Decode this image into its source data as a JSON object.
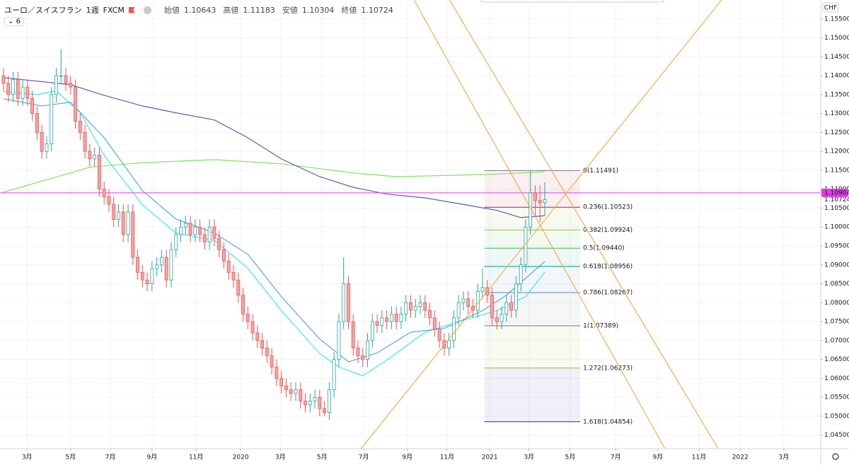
{
  "chart_data": {
    "type": "candlestick",
    "title": "ユーロ／スイスフラン",
    "interval": "1週",
    "source": "FXCM",
    "currency": "CHF",
    "indicator_count": 6,
    "ohlc_labels": [
      "始値",
      "高値",
      "安値",
      "終値"
    ],
    "up_color": "#26a69a",
    "down_color": "#ef5350",
    "grid": true,
    "xlim": [
      -0.74,
      170.6
    ],
    "ylim": [
      1.0414,
      1.16
    ],
    "xticks": [
      {
        "value": 4.9,
        "label": "3月"
      },
      {
        "value": 14.0,
        "label": "5月"
      },
      {
        "value": 22.3,
        "label": "7月"
      },
      {
        "value": 31.0,
        "label": "9月"
      },
      {
        "value": 40.2,
        "label": "11月"
      },
      {
        "value": 49.5,
        "label": "2020"
      },
      {
        "value": 57.8,
        "label": "3月"
      },
      {
        "value": 66.5,
        "label": "5月"
      },
      {
        "value": 75.2,
        "label": "7月"
      },
      {
        "value": 84.3,
        "label": "9月"
      },
      {
        "value": 92.6,
        "label": "11月"
      },
      {
        "value": 101.5,
        "label": "2021"
      },
      {
        "value": 109.7,
        "label": "3月"
      },
      {
        "value": 118.3,
        "label": "5月"
      },
      {
        "value": 127.8,
        "label": "7月"
      },
      {
        "value": 136.6,
        "label": "9月"
      },
      {
        "value": 145.2,
        "label": "11月"
      },
      {
        "value": 153.8,
        "label": "2022"
      },
      {
        "value": 162.9,
        "label": "3月"
      }
    ],
    "yticks": [
      {
        "value": 1.045,
        "label": "1.04500"
      },
      {
        "value": 1.05,
        "label": "1.05000"
      },
      {
        "value": 1.055,
        "label": "1.05500"
      },
      {
        "value": 1.06,
        "label": "1.06000"
      },
      {
        "value": 1.065,
        "label": "1.06500"
      },
      {
        "value": 1.07,
        "label": "1.07000"
      },
      {
        "value": 1.075,
        "label": "1.07500"
      },
      {
        "value": 1.08,
        "label": "1.08000"
      },
      {
        "value": 1.085,
        "label": "1.08500"
      },
      {
        "value": 1.09,
        "label": "1.09000"
      },
      {
        "value": 1.095,
        "label": "1.09500"
      },
      {
        "value": 1.1,
        "label": "1.10000"
      },
      {
        "value": 1.105,
        "label": "1.10500"
      },
      {
        "value": 1.11,
        "label": "1.11000"
      },
      {
        "value": 1.115,
        "label": "1.11500"
      },
      {
        "value": 1.12,
        "label": "1.12000"
      },
      {
        "value": 1.125,
        "label": "1.12500"
      },
      {
        "value": 1.13,
        "label": "1.13000"
      },
      {
        "value": 1.135,
        "label": "1.13500"
      },
      {
        "value": 1.14,
        "label": "1.14000"
      },
      {
        "value": 1.145,
        "label": "1.14500"
      },
      {
        "value": 1.15,
        "label": "1.15000"
      },
      {
        "value": 1.155,
        "label": "1.15500"
      }
    ],
    "x": [
      0,
      1,
      2,
      3,
      4,
      5,
      6,
      7,
      8,
      9,
      10,
      11,
      12,
      13,
      14,
      15,
      16,
      17,
      18,
      19,
      20,
      21,
      22,
      23,
      24,
      25,
      26,
      27,
      28,
      29,
      30,
      31,
      32,
      33,
      34,
      35,
      36,
      37,
      38,
      39,
      40,
      41,
      42,
      43,
      44,
      45,
      46,
      47,
      48,
      49,
      50,
      51,
      52,
      53,
      54,
      55,
      56,
      57,
      58,
      59,
      60,
      61,
      62,
      63,
      64,
      65,
      66,
      67,
      68,
      69,
      70,
      71,
      72,
      73,
      74,
      75,
      76,
      77,
      78,
      79,
      80,
      81,
      82,
      83,
      84,
      85,
      86,
      87,
      88,
      89,
      90,
      91,
      92,
      93,
      94,
      95,
      96,
      97,
      98,
      99,
      100,
      101,
      102,
      103,
      104,
      105,
      106,
      107,
      108,
      109,
      110,
      111,
      112,
      113
    ],
    "open": [
      1.14,
      1.138,
      1.135,
      1.139,
      1.134,
      1.137,
      1.134,
      1.13,
      1.125,
      1.12,
      1.122,
      1.135,
      1.14,
      1.14,
      1.138,
      1.137,
      1.128,
      1.125,
      1.12,
      1.118,
      1.119,
      1.11,
      1.108,
      1.106,
      1.102,
      1.104,
      1.098,
      1.104,
      1.092,
      1.088,
      1.086,
      1.085,
      1.089,
      1.09,
      1.092,
      1.086,
      1.094,
      1.098,
      1.1,
      1.101,
      1.098,
      1.1,
      1.098,
      1.096,
      1.1,
      1.097,
      1.094,
      1.091,
      1.088,
      1.086,
      1.082,
      1.077,
      1.075,
      1.072,
      1.07,
      1.068,
      1.066,
      1.063,
      1.06,
      1.058,
      1.057,
      1.056,
      1.057,
      1.054,
      1.053,
      1.054,
      1.055,
      1.052,
      1.051,
      1.057,
      1.065,
      1.075,
      1.085,
      1.075,
      1.068,
      1.066,
      1.065,
      1.07,
      1.075,
      1.074,
      1.076,
      1.075,
      1.077,
      1.075,
      1.077,
      1.08,
      1.078,
      1.079,
      1.08,
      1.078,
      1.076,
      1.073,
      1.07,
      1.068,
      1.07,
      1.076,
      1.08,
      1.081,
      1.079,
      1.078,
      1.083,
      1.084,
      1.082,
      1.076,
      1.075,
      1.077,
      1.08,
      1.078,
      1.085,
      1.09,
      1.1,
      1.109,
      1.107,
      1.10643
    ],
    "high": [
      1.142,
      1.14,
      1.141,
      1.141,
      1.139,
      1.139,
      1.136,
      1.132,
      1.127,
      1.124,
      1.137,
      1.142,
      1.147,
      1.142,
      1.14,
      1.139,
      1.13,
      1.127,
      1.122,
      1.121,
      1.121,
      1.112,
      1.11,
      1.108,
      1.106,
      1.106,
      1.106,
      1.106,
      1.094,
      1.09,
      1.088,
      1.091,
      1.092,
      1.094,
      1.094,
      1.096,
      1.1,
      1.102,
      1.103,
      1.103,
      1.102,
      1.102,
      1.1,
      1.102,
      1.102,
      1.099,
      1.096,
      1.093,
      1.09,
      1.088,
      1.084,
      1.079,
      1.077,
      1.074,
      1.072,
      1.07,
      1.068,
      1.065,
      1.062,
      1.06,
      1.059,
      1.059,
      1.059,
      1.056,
      1.056,
      1.057,
      1.057,
      1.054,
      1.059,
      1.067,
      1.077,
      1.092,
      1.087,
      1.077,
      1.07,
      1.068,
      1.072,
      1.077,
      1.077,
      1.078,
      1.078,
      1.079,
      1.079,
      1.079,
      1.082,
      1.082,
      1.081,
      1.082,
      1.082,
      1.08,
      1.078,
      1.075,
      1.072,
      1.072,
      1.078,
      1.082,
      1.083,
      1.083,
      1.081,
      1.085,
      1.089,
      1.086,
      1.084,
      1.078,
      1.079,
      1.082,
      1.082,
      1.087,
      1.092,
      1.102,
      1.115,
      1.111,
      1.111,
      1.11183
    ],
    "low": [
      1.136,
      1.133,
      1.133,
      1.132,
      1.132,
      1.132,
      1.128,
      1.123,
      1.118,
      1.118,
      1.12,
      1.133,
      1.138,
      1.136,
      1.135,
      1.126,
      1.123,
      1.118,
      1.116,
      1.116,
      1.108,
      1.106,
      1.104,
      1.1,
      1.1,
      1.096,
      1.096,
      1.09,
      1.086,
      1.084,
      1.083,
      1.083,
      1.087,
      1.088,
      1.084,
      1.084,
      1.092,
      1.096,
      1.098,
      1.096,
      1.096,
      1.096,
      1.094,
      1.094,
      1.095,
      1.092,
      1.089,
      1.086,
      1.084,
      1.08,
      1.075,
      1.073,
      1.07,
      1.068,
      1.066,
      1.064,
      1.061,
      1.058,
      1.056,
      1.055,
      1.054,
      1.054,
      1.052,
      1.051,
      1.051,
      1.052,
      1.05,
      1.05,
      1.049,
      1.055,
      1.063,
      1.073,
      1.073,
      1.066,
      1.064,
      1.063,
      1.063,
      1.068,
      1.072,
      1.072,
      1.073,
      1.073,
      1.073,
      1.073,
      1.075,
      1.076,
      1.076,
      1.077,
      1.076,
      1.074,
      1.071,
      1.068,
      1.066,
      1.066,
      1.068,
      1.074,
      1.078,
      1.077,
      1.076,
      1.076,
      1.081,
      1.08,
      1.074,
      1.073,
      1.073,
      1.075,
      1.076,
      1.076,
      1.083,
      1.088,
      1.098,
      1.103,
      1.1013,
      1.10304
    ],
    "close": [
      1.138,
      1.135,
      1.139,
      1.134,
      1.137,
      1.134,
      1.13,
      1.125,
      1.12,
      1.122,
      1.135,
      1.14,
      1.14,
      1.138,
      1.137,
      1.128,
      1.125,
      1.12,
      1.118,
      1.119,
      1.11,
      1.108,
      1.106,
      1.102,
      1.104,
      1.098,
      1.104,
      1.092,
      1.088,
      1.086,
      1.085,
      1.089,
      1.09,
      1.092,
      1.086,
      1.094,
      1.098,
      1.1,
      1.101,
      1.098,
      1.1,
      1.098,
      1.096,
      1.1,
      1.097,
      1.094,
      1.091,
      1.088,
      1.086,
      1.082,
      1.077,
      1.075,
      1.072,
      1.07,
      1.068,
      1.066,
      1.063,
      1.06,
      1.058,
      1.057,
      1.056,
      1.057,
      1.054,
      1.053,
      1.054,
      1.055,
      1.052,
      1.051,
      1.057,
      1.065,
      1.075,
      1.085,
      1.075,
      1.068,
      1.066,
      1.065,
      1.07,
      1.075,
      1.074,
      1.076,
      1.075,
      1.077,
      1.075,
      1.077,
      1.08,
      1.078,
      1.079,
      1.08,
      1.078,
      1.076,
      1.073,
      1.07,
      1.068,
      1.07,
      1.076,
      1.08,
      1.081,
      1.079,
      1.078,
      1.083,
      1.084,
      1.082,
      1.076,
      1.075,
      1.077,
      1.08,
      1.078,
      1.085,
      1.09,
      1.1,
      1.109,
      1.107,
      1.1064,
      1.10724
    ],
    "series": [
      {
        "color": "#7ee35a",
        "x": [
          0,
          18,
          29,
          44,
          58,
          73,
          82,
          95,
          103,
          113
        ],
        "values": [
          1.1092,
          1.1158,
          1.117,
          1.1178,
          1.1167,
          1.1143,
          1.1133,
          1.1137,
          1.114,
          1.1146
        ]
      },
      {
        "color": "#6a55b8",
        "x": [
          0,
          14,
          21,
          29,
          36,
          44,
          51,
          58,
          66,
          73,
          80,
          88,
          95,
          103,
          108,
          113
        ],
        "values": [
          1.1395,
          1.1376,
          1.1348,
          1.132,
          1.1302,
          1.1283,
          1.1236,
          1.118,
          1.1133,
          1.1105,
          1.1087,
          1.1077,
          1.1062,
          1.1044,
          1.1025,
          1.103
        ]
      },
      {
        "color": "#40e6f2",
        "x": [
          0,
          7,
          11,
          16,
          21,
          29,
          36,
          44,
          51,
          58,
          66,
          70,
          75,
          80,
          88,
          95,
          103,
          109,
          113
        ],
        "values": [
          1.1358,
          1.135,
          1.136,
          1.1302,
          1.119,
          1.1059,
          1.0984,
          1.0965,
          1.0891,
          1.0779,
          1.0666,
          1.063,
          1.0607,
          1.0648,
          1.0722,
          1.075,
          1.0779,
          1.0816,
          1.0881
        ]
      },
      {
        "color": "#5aa8d8",
        "x": [
          0,
          8,
          14,
          21,
          29,
          36,
          44,
          51,
          58,
          66,
          72,
          78,
          85,
          92,
          100,
          105,
          113
        ],
        "values": [
          1.1339,
          1.132,
          1.133,
          1.1236,
          1.1096,
          1.1021,
          1.0984,
          1.0928,
          1.0816,
          1.0704,
          1.0644,
          1.0667,
          1.0722,
          1.0732,
          1.0779,
          1.082,
          1.0909
        ]
      }
    ],
    "trend_lines": [
      {
        "color": "#f5a02a",
        "x": [
          74.6,
          149.9
        ],
        "y": [
          1.0414,
          1.16
        ]
      },
      {
        "color": "#f5a02a",
        "x": [
          85.7,
          138.1
        ],
        "y": [
          1.16,
          1.0414
        ]
      },
      {
        "color": "#f5a02a",
        "x": [
          93.1,
          149.2
        ],
        "y": [
          1.16,
          1.0414
        ]
      }
    ],
    "hline": {
      "value": 1.10904,
      "color": "#e33be8"
    },
    "fib": {
      "x_range": [
        100.4,
        120.4
      ],
      "levels": [
        {
          "label": "0(1.11491)",
          "price": 1.11491,
          "color": "#787b86"
        },
        {
          "label": "0.236(1.10523)",
          "price": 1.10523,
          "color": "#b22833"
        },
        {
          "label": "0.382(1.09924)",
          "price": 1.09924,
          "color": "#9bbb3b"
        },
        {
          "label": "0.5(1.09440)",
          "price": 1.0944,
          "color": "#4caf50"
        },
        {
          "label": "0.618(1.08956)",
          "price": 1.08956,
          "color": "#089981"
        },
        {
          "label": "0.786(1.08267)",
          "price": 1.08267,
          "color": "#4c8fcc"
        },
        {
          "label": "1(1.07389)",
          "price": 1.07389,
          "color": "#787b86"
        },
        {
          "label": "1.272(1.06273)",
          "price": 1.06273,
          "color": "#9bbb3b"
        },
        {
          "label": "1.618(1.04854)",
          "price": 1.04854,
          "color": "#2b2fa0"
        }
      ]
    }
  }
}
